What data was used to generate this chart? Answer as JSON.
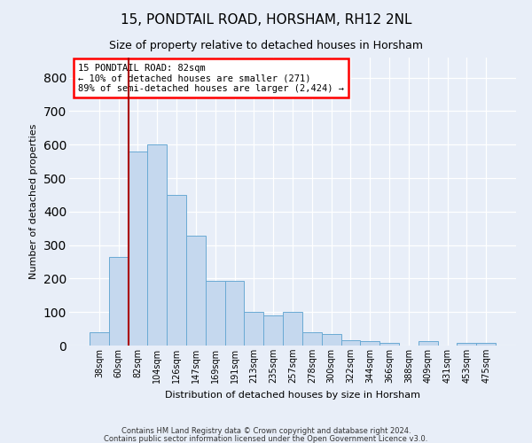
{
  "title1": "15, PONDTAIL ROAD, HORSHAM, RH12 2NL",
  "title2": "Size of property relative to detached houses in Horsham",
  "xlabel": "Distribution of detached houses by size in Horsham",
  "ylabel": "Number of detached properties",
  "categories": [
    "38sqm",
    "60sqm",
    "82sqm",
    "104sqm",
    "126sqm",
    "147sqm",
    "169sqm",
    "191sqm",
    "213sqm",
    "235sqm",
    "257sqm",
    "278sqm",
    "300sqm",
    "322sqm",
    "344sqm",
    "366sqm",
    "388sqm",
    "409sqm",
    "431sqm",
    "453sqm",
    "475sqm"
  ],
  "values": [
    40,
    265,
    580,
    600,
    450,
    328,
    193,
    193,
    100,
    90,
    100,
    40,
    35,
    15,
    12,
    8,
    0,
    12,
    0,
    8,
    8
  ],
  "bar_color": "#c5d8ee",
  "bar_edge_color": "#6aaad4",
  "annotation_line1": "15 PONDTAIL ROAD: 82sqm",
  "annotation_line2": "← 10% of detached houses are smaller (271)",
  "annotation_line3": "89% of semi-detached houses are larger (2,424) →",
  "annotation_box_color": "white",
  "annotation_box_edge": "red",
  "vline_index": 2,
  "vline_color": "#aa0000",
  "ylim": [
    0,
    860
  ],
  "yticks": [
    0,
    100,
    200,
    300,
    400,
    500,
    600,
    700,
    800
  ],
  "footer1": "Contains HM Land Registry data © Crown copyright and database right 2024.",
  "footer2": "Contains public sector information licensed under the Open Government Licence v3.0.",
  "bg_color": "#e8eef8",
  "grid_color": "#ffffff",
  "title1_fontsize": 11,
  "title2_fontsize": 9,
  "ylabel_fontsize": 8,
  "xlabel_fontsize": 8,
  "tick_fontsize": 7,
  "footer_fontsize": 6
}
